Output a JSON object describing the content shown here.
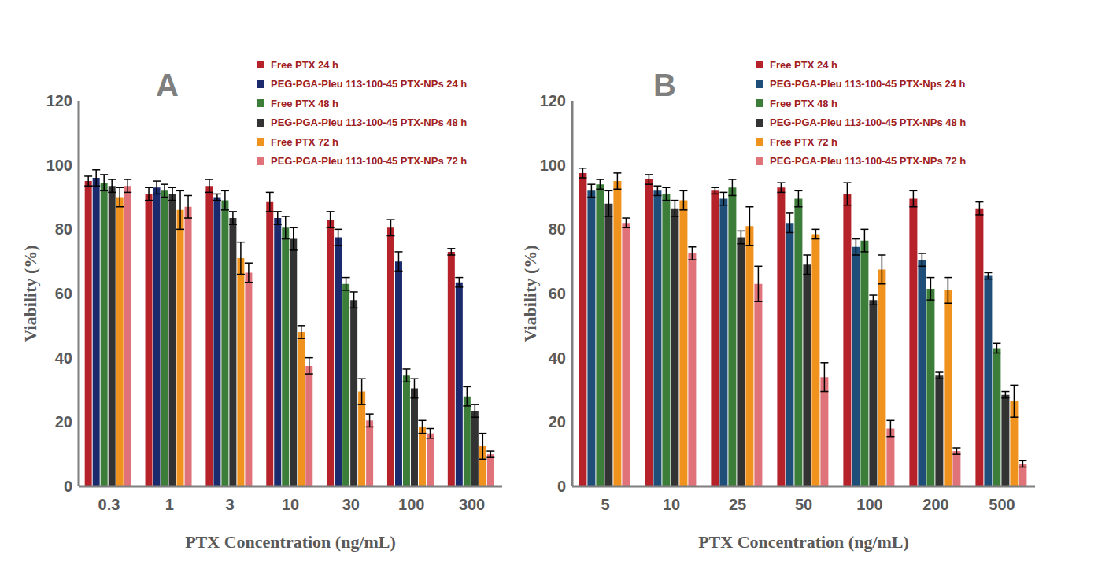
{
  "chart_data": [
    {
      "type": "bar",
      "title": "A",
      "x_label": "PTX Concentration (ng/mL)",
      "y_label": "Viability (%)",
      "categories": [
        "0.3",
        "1",
        "3",
        "10",
        "30",
        "100",
        "300"
      ],
      "ylim": [
        0,
        120
      ],
      "yticks": [
        0,
        20,
        40,
        60,
        80,
        100,
        120
      ],
      "grid": false,
      "series": [
        {
          "name": "Free PTX 24 h",
          "color": "#b5222a",
          "values": [
            95,
            91,
            93.5,
            88.5,
            83,
            80.5,
            73
          ],
          "errors": [
            1.5,
            2,
            2,
            3,
            2.5,
            2.5,
            1
          ]
        },
        {
          "name": "PEG-PGA-Pleu 113-100-45 PTX-NPs 24 h",
          "color": "#1a2a6c",
          "values": [
            96,
            93,
            90,
            83.5,
            77.5,
            70,
            63.5
          ],
          "errors": [
            2.5,
            2,
            1,
            2,
            2.5,
            3,
            1.5
          ]
        },
        {
          "name": "Free PTX 48 h",
          "color": "#3c7d3a",
          "values": [
            94.5,
            92,
            89,
            80.5,
            63,
            34.5,
            28
          ],
          "errors": [
            2.5,
            2,
            3,
            3.5,
            2,
            2,
            3
          ]
        },
        {
          "name": "PEG-PGA-Pleu 113-100-45 PTX-NPs 48 h",
          "color": "#333333",
          "values": [
            93.5,
            91,
            83.5,
            77,
            58,
            30.5,
            23.5
          ],
          "errors": [
            2,
            2,
            2,
            3.5,
            2.5,
            3,
            2
          ]
        },
        {
          "name": "Free PTX 72 h",
          "color": "#f0921e",
          "values": [
            90,
            86,
            71,
            48,
            29.5,
            18.5,
            12.5
          ],
          "errors": [
            3,
            6,
            5,
            2,
            4,
            2,
            4
          ]
        },
        {
          "name": "PEG-PGA-Pleu 113-100-45 PTX-NPs 72 h",
          "color": "#e0727a",
          "values": [
            93.5,
            87,
            66.5,
            37.5,
            20.5,
            16.5,
            10
          ],
          "errors": [
            2,
            3.5,
            3,
            2.5,
            2,
            1.5,
            1
          ]
        }
      ]
    },
    {
      "type": "bar",
      "title": "B",
      "x_label": "PTX Concentration (ng/mL)",
      "y_label": "Viability (%)",
      "categories": [
        "5",
        "10",
        "25",
        "50",
        "100",
        "200",
        "500"
      ],
      "ylim": [
        0,
        120
      ],
      "yticks": [
        0,
        20,
        40,
        60,
        80,
        100,
        120
      ],
      "grid": false,
      "series": [
        {
          "name": "Free PTX 24 h",
          "color": "#b5222a",
          "values": [
            97.5,
            95.5,
            92,
            93,
            91,
            89.5,
            86.5
          ],
          "errors": [
            1.5,
            1.5,
            1,
            1.5,
            3.5,
            2.5,
            2
          ]
        },
        {
          "name": "PEG-PGA-Pleu 113-100-45 PTX-Nps 24 h",
          "color": "#1f4e79",
          "values": [
            92,
            92,
            89.5,
            82,
            74.5,
            70.5,
            65.5
          ],
          "errors": [
            2,
            1.5,
            2,
            3,
            2.5,
            2,
            1
          ]
        },
        {
          "name": "Free PTX 48 h",
          "color": "#3c7d3a",
          "values": [
            94,
            91,
            93,
            89.5,
            76.5,
            61.5,
            43
          ],
          "errors": [
            1.5,
            2,
            2.5,
            2.5,
            3.5,
            3.5,
            1.5
          ]
        },
        {
          "name": "PEG-PGA-Pleu 113-100-45 PTX-NPs 48 h",
          "color": "#333333",
          "values": [
            88,
            86.5,
            77.5,
            69,
            58,
            34.5,
            28.5
          ],
          "errors": [
            4,
            2.5,
            2,
            3,
            1.5,
            1,
            1
          ]
        },
        {
          "name": "Free PTX 72 h",
          "color": "#f0921e",
          "values": [
            95,
            89,
            81,
            78.5,
            67.5,
            61,
            26.5
          ],
          "errors": [
            2.5,
            3,
            6,
            1.5,
            4.5,
            4,
            5
          ]
        },
        {
          "name": "PEG-PGA-Pleu 113-100-45 PTX-NPs 72 h",
          "color": "#e0727a",
          "values": [
            82,
            72.5,
            63,
            34,
            18,
            11,
            7
          ],
          "errors": [
            1.5,
            2,
            5.5,
            4.5,
            2.5,
            1,
            1
          ]
        }
      ]
    }
  ]
}
